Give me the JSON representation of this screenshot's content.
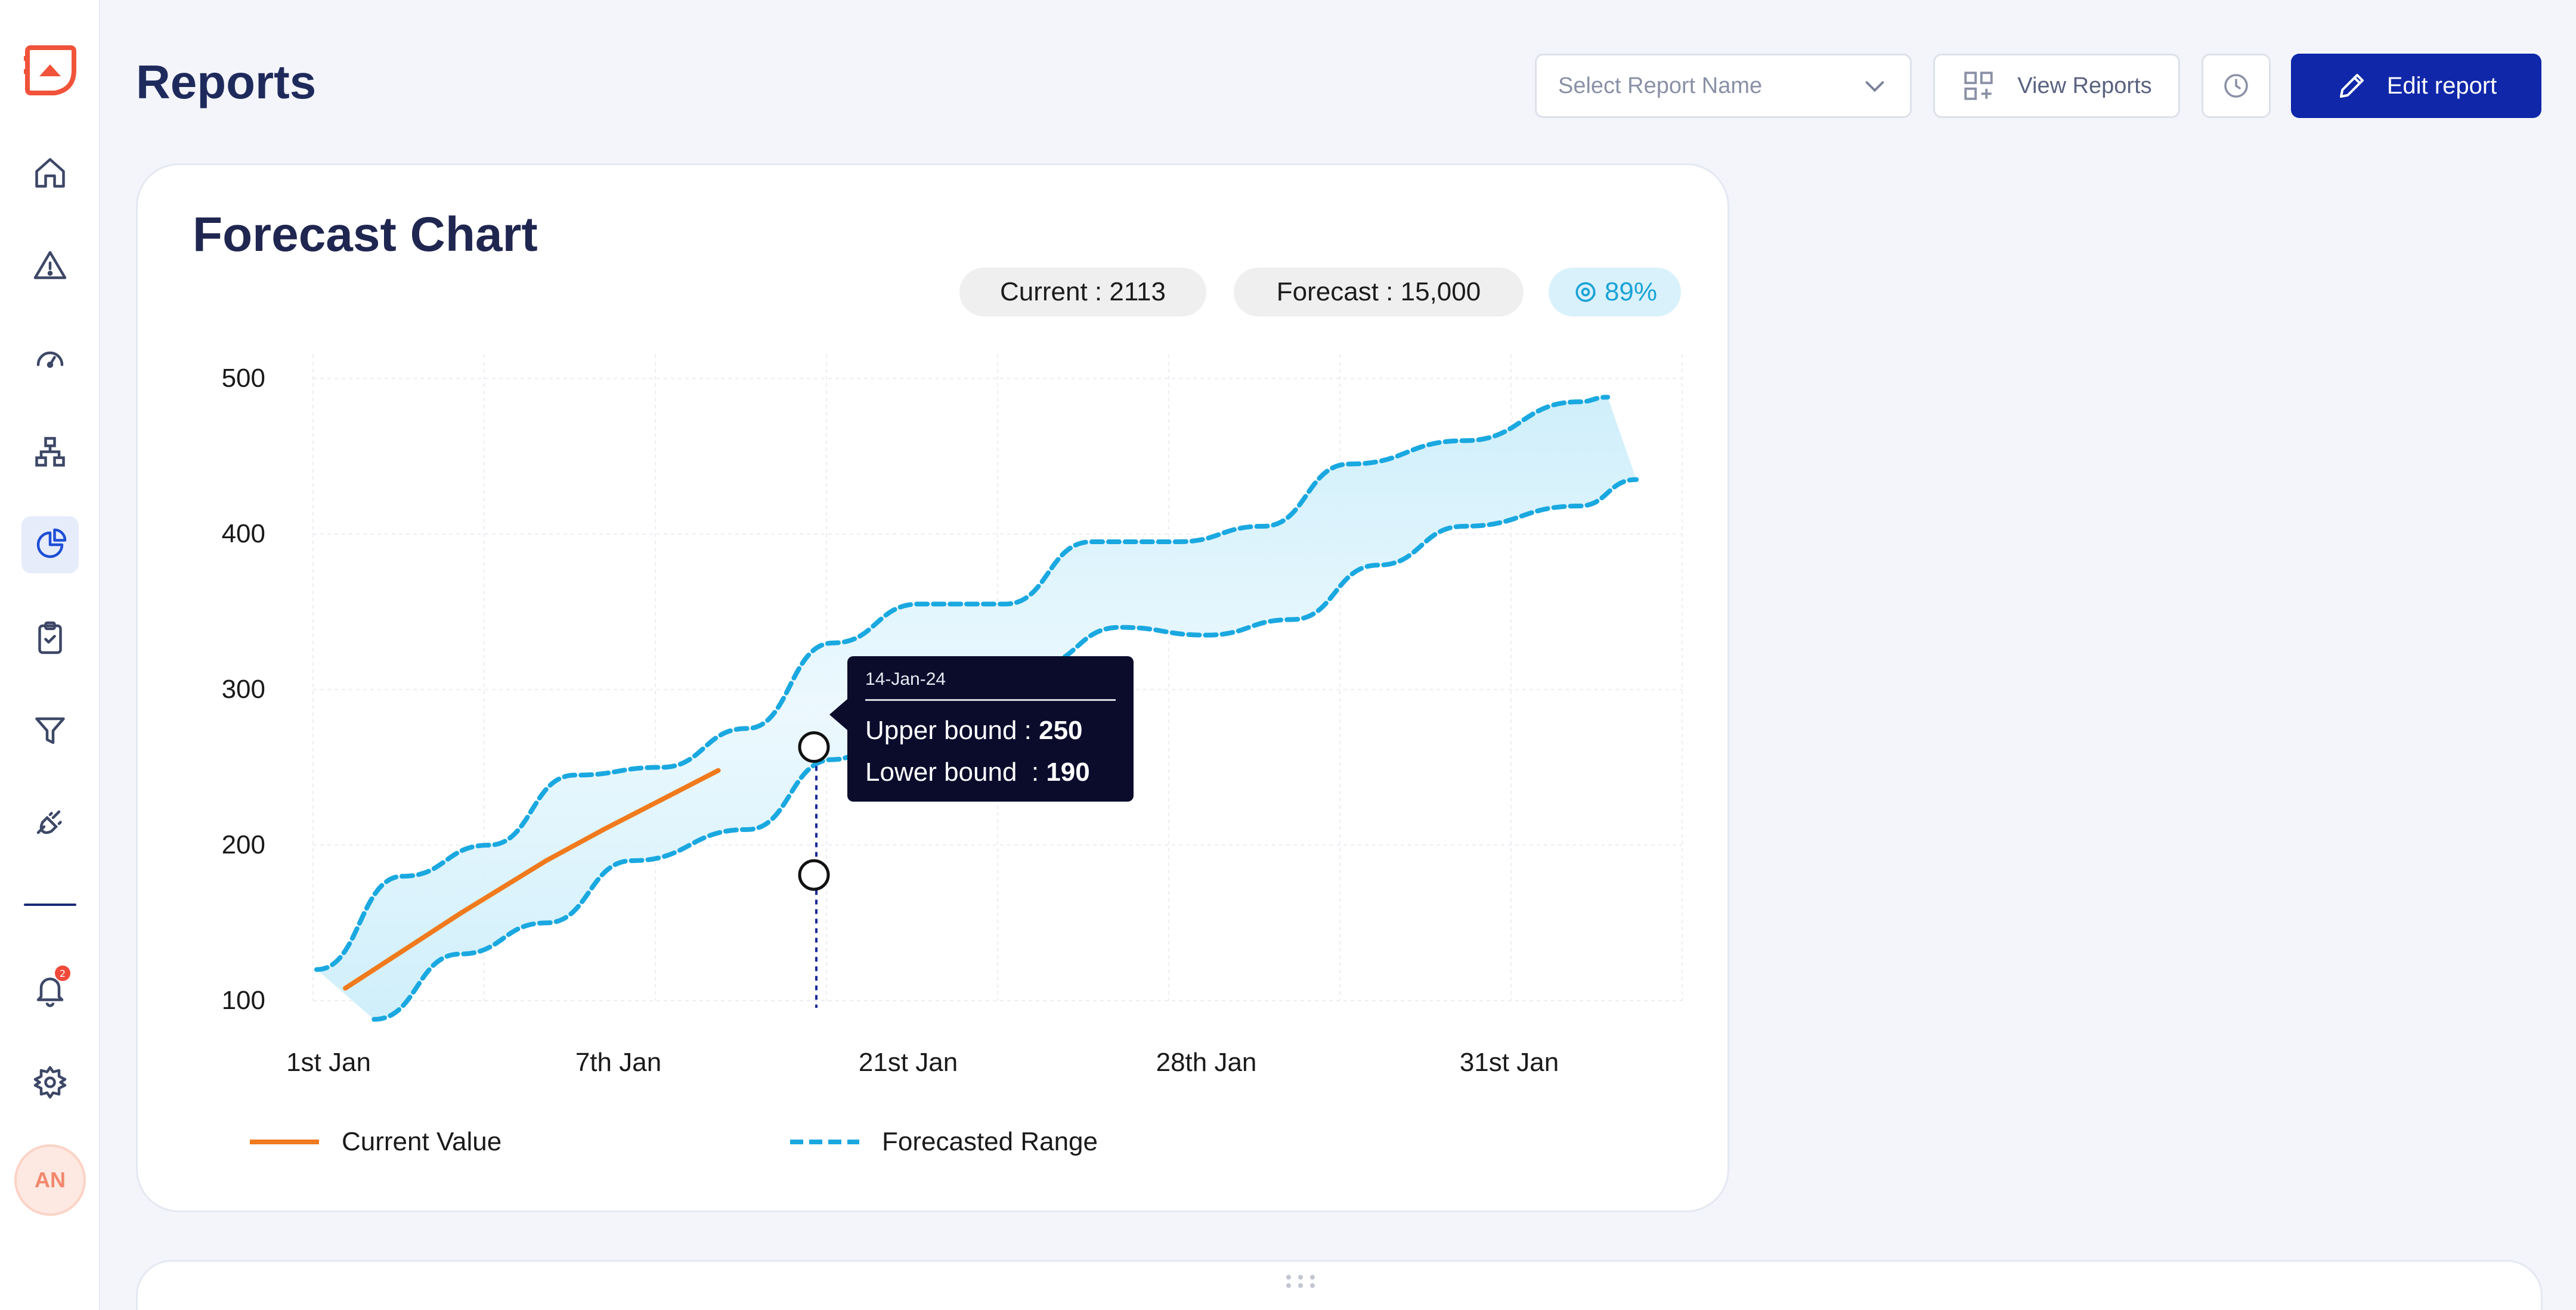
{
  "header": {
    "title": "Reports",
    "select_placeholder": "Select Report Name",
    "view_reports_label": "View Reports",
    "edit_report_label": "Edit report"
  },
  "sidebar": {
    "items": [
      {
        "name": "home",
        "icon": "home-icon"
      },
      {
        "name": "alerts",
        "icon": "warning-icon"
      },
      {
        "name": "dashboard",
        "icon": "gauge-icon"
      },
      {
        "name": "hierarchy",
        "icon": "sitemap-icon"
      },
      {
        "name": "reports",
        "icon": "pie-chart-icon",
        "active": true
      },
      {
        "name": "tasks",
        "icon": "clipboard-check-icon"
      },
      {
        "name": "filters",
        "icon": "filter-icon"
      },
      {
        "name": "integrations",
        "icon": "plug-icon"
      }
    ],
    "notification_count": "2",
    "avatar_initials": "AN"
  },
  "card": {
    "title": "Forecast Chart",
    "current_pill": "Current : 2113",
    "forecast_pill": "Forecast : 15,000",
    "accuracy_pill": "89%"
  },
  "tooltip": {
    "date": "14-Jan-24",
    "upper_label": "Upper bound : ",
    "upper_value": "250",
    "lower_label": "Lower bound  : ",
    "lower_value": "190"
  },
  "legend": {
    "current": "Current Value",
    "forecast": "Forecasted Range"
  },
  "colors": {
    "accent": "#0f27a8",
    "current_line": "#f07a1c",
    "forecast_line": "#1aa8e0",
    "band_fill": "#cdeefa",
    "tooltip_bg": "#0b0c2c"
  },
  "chart_data": {
    "type": "line",
    "title": "Forecast Chart",
    "x_ticks": [
      "1st Jan",
      "7th Jan",
      "21st Jan",
      "28th Jan",
      "31st Jan"
    ],
    "y_ticks": [
      100,
      200,
      300,
      400,
      500
    ],
    "ylim": [
      100,
      500
    ],
    "grid": true,
    "legend_position": "bottom-left",
    "series": [
      {
        "name": "Current Value",
        "x": [
          0.1,
          0.5,
          0.8,
          1.0,
          1.4
        ],
        "values": [
          108,
          156,
          190,
          210,
          248
        ]
      },
      {
        "name": "Forecasted Range",
        "upper": {
          "x": [
            0.0,
            0.3,
            0.6,
            0.9,
            1.2,
            1.5,
            1.8,
            2.1,
            2.4,
            2.7,
            3.0,
            3.3,
            3.6,
            4.0,
            4.4,
            4.5
          ],
          "values": [
            120,
            180,
            200,
            245,
            250,
            275,
            330,
            355,
            355,
            395,
            395,
            405,
            445,
            460,
            485,
            488
          ]
        },
        "lower": {
          "x": [
            0.2,
            0.5,
            0.8,
            1.1,
            1.5,
            1.8,
            2.1,
            2.5,
            2.8,
            3.1,
            3.4,
            3.7,
            4.0,
            4.4,
            4.6
          ],
          "values": [
            88,
            130,
            150,
            190,
            210,
            255,
            290,
            315,
            340,
            335,
            345,
            380,
            405,
            418,
            435
          ]
        }
      }
    ],
    "highlight": {
      "date": "14-Jan-24",
      "upper": 250,
      "lower": 190
    }
  }
}
